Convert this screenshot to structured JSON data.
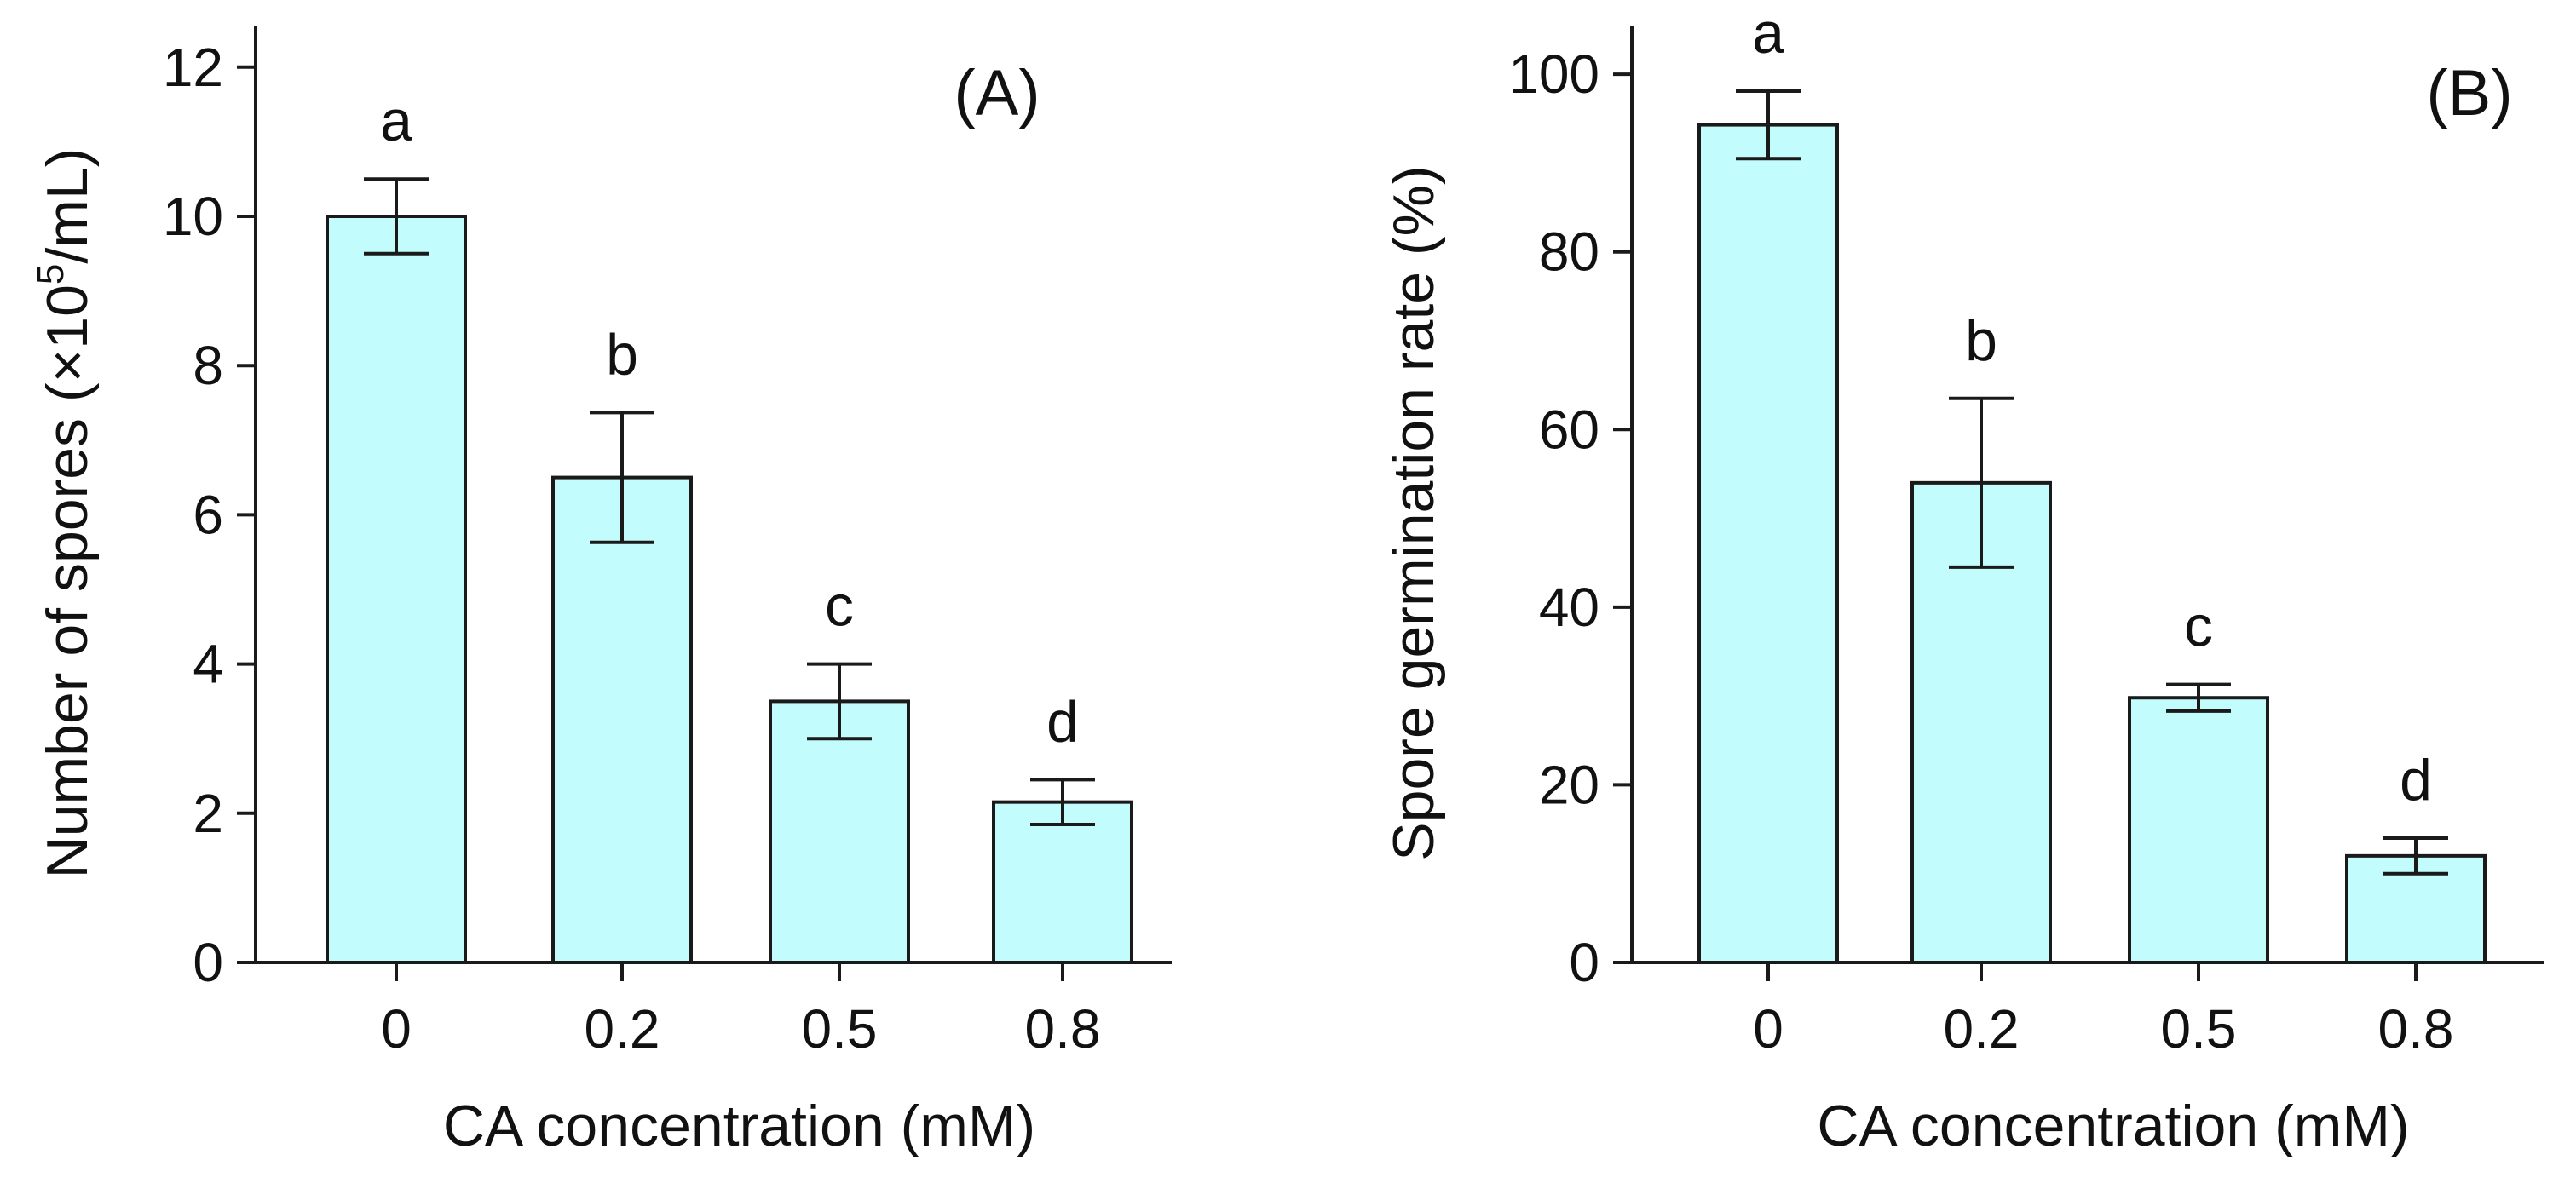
{
  "chart_data": [
    {
      "type": "bar",
      "panel_label": "(A)",
      "categories": [
        "0",
        "0.2",
        "0.5",
        "0.8"
      ],
      "values": [
        10.0,
        6.5,
        3.5,
        2.15
      ],
      "errors": [
        0.5,
        0.87,
        0.5,
        0.3
      ],
      "significance_letters": [
        "a",
        "b",
        "c",
        "d"
      ],
      "xlabel": "CA concentration (mM)",
      "ylabel_main": "Number of spores (×10",
      "ylabel_sup": "5",
      "ylabel_tail": "/mL)",
      "ylim": [
        0,
        12.5
      ],
      "yticks": [
        0,
        2,
        4,
        6,
        8,
        10,
        12
      ],
      "ytick_labels": [
        "0",
        "2",
        "4",
        "6",
        "8",
        "10",
        "12"
      ],
      "bar_color": "#C2FCFC",
      "edge_color": "#1a1a1a"
    },
    {
      "type": "bar",
      "panel_label": "(B)",
      "categories": [
        "0",
        "0.2",
        "0.5",
        "0.8"
      ],
      "values": [
        94.3,
        54.0,
        29.8,
        12.0
      ],
      "errors": [
        3.8,
        9.5,
        1.5,
        2.0
      ],
      "significance_letters": [
        "a",
        "b",
        "c",
        "d"
      ],
      "xlabel": "CA concentration (mM)",
      "ylabel_main": "Spore germination rate (%)",
      "ylabel_sup": "",
      "ylabel_tail": "",
      "ylim": [
        0,
        105
      ],
      "yticks": [
        0,
        20,
        40,
        60,
        80,
        100
      ],
      "ytick_labels": [
        "0",
        "20",
        "40",
        "60",
        "80",
        "100"
      ],
      "bar_color": "#C2FCFC",
      "edge_color": "#1a1a1a"
    }
  ]
}
